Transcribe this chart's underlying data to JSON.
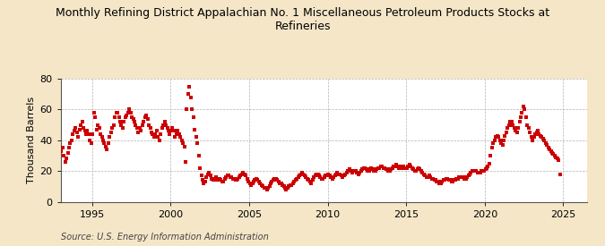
{
  "title": "Monthly Refining District Appalachian No. 1 Miscellaneous Petroleum Products Stocks at\nRefineries",
  "ylabel": "Thousand Barrels",
  "source": "Source: U.S. Energy Information Administration",
  "background_color": "#f5e6c8",
  "plot_bg_color": "#ffffff",
  "marker_color": "#cc0000",
  "marker_size": 5,
  "xlim_left": 1993.0,
  "xlim_right": 2026.5,
  "ylim_bottom": 0,
  "ylim_top": 80,
  "yticks": [
    0,
    20,
    40,
    60,
    80
  ],
  "xticks": [
    1995,
    2000,
    2005,
    2010,
    2015,
    2020,
    2025
  ],
  "data": {
    "1993-01": 33,
    "1993-02": 35,
    "1993-03": 30,
    "1993-04": 26,
    "1993-05": 28,
    "1993-06": 32,
    "1993-07": 35,
    "1993-08": 38,
    "1993-09": 40,
    "1993-10": 44,
    "1993-11": 46,
    "1993-12": 48,
    "1994-01": 45,
    "1994-02": 42,
    "1994-03": 47,
    "1994-04": 50,
    "1994-05": 52,
    "1994-06": 48,
    "1994-07": 46,
    "1994-08": 44,
    "1994-09": 46,
    "1994-10": 44,
    "1994-11": 40,
    "1994-12": 38,
    "1995-01": 44,
    "1995-02": 58,
    "1995-03": 55,
    "1995-04": 47,
    "1995-05": 50,
    "1995-06": 48,
    "1995-07": 44,
    "1995-08": 42,
    "1995-09": 40,
    "1995-10": 38,
    "1995-11": 36,
    "1995-12": 34,
    "1996-01": 38,
    "1996-02": 42,
    "1996-03": 45,
    "1996-04": 48,
    "1996-05": 50,
    "1996-06": 55,
    "1996-07": 58,
    "1996-08": 58,
    "1996-09": 55,
    "1996-10": 52,
    "1996-11": 50,
    "1996-12": 48,
    "1997-01": 52,
    "1997-02": 55,
    "1997-03": 56,
    "1997-04": 58,
    "1997-05": 60,
    "1997-06": 58,
    "1997-07": 55,
    "1997-08": 54,
    "1997-09": 52,
    "1997-10": 50,
    "1997-11": 48,
    "1997-12": 45,
    "1998-01": 48,
    "1998-02": 46,
    "1998-03": 50,
    "1998-04": 52,
    "1998-05": 55,
    "1998-06": 56,
    "1998-07": 54,
    "1998-08": 50,
    "1998-09": 48,
    "1998-10": 45,
    "1998-11": 44,
    "1998-12": 42,
    "1999-01": 44,
    "1999-02": 46,
    "1999-03": 42,
    "1999-04": 40,
    "1999-05": 44,
    "1999-06": 48,
    "1999-07": 50,
    "1999-08": 52,
    "1999-09": 50,
    "1999-10": 48,
    "1999-11": 46,
    "1999-12": 44,
    "2000-01": 46,
    "2000-02": 48,
    "2000-03": 46,
    "2000-04": 42,
    "2000-05": 44,
    "2000-06": 46,
    "2000-07": 44,
    "2000-08": 42,
    "2000-09": 40,
    "2000-10": 38,
    "2000-11": 36,
    "2000-12": 26,
    "2001-01": 60,
    "2001-02": 70,
    "2001-03": 75,
    "2001-04": 68,
    "2001-05": 60,
    "2001-06": 55,
    "2001-07": 47,
    "2001-08": 42,
    "2001-09": 38,
    "2001-10": 30,
    "2001-11": 22,
    "2001-12": 17,
    "2002-01": 14,
    "2002-02": 12,
    "2002-03": 13,
    "2002-04": 16,
    "2002-05": 18,
    "2002-06": 19,
    "2002-07": 17,
    "2002-08": 15,
    "2002-09": 14,
    "2002-10": 15,
    "2002-11": 16,
    "2002-12": 14,
    "2003-01": 14,
    "2003-02": 15,
    "2003-03": 14,
    "2003-04": 13,
    "2003-05": 13,
    "2003-06": 15,
    "2003-07": 16,
    "2003-08": 17,
    "2003-09": 17,
    "2003-10": 16,
    "2003-11": 16,
    "2003-12": 15,
    "2004-01": 15,
    "2004-02": 14,
    "2004-03": 14,
    "2004-04": 15,
    "2004-05": 16,
    "2004-06": 17,
    "2004-07": 18,
    "2004-08": 19,
    "2004-09": 18,
    "2004-10": 17,
    "2004-11": 15,
    "2004-12": 13,
    "2005-01": 12,
    "2005-02": 11,
    "2005-03": 12,
    "2005-04": 13,
    "2005-05": 14,
    "2005-06": 15,
    "2005-07": 14,
    "2005-08": 13,
    "2005-09": 12,
    "2005-10": 11,
    "2005-11": 10,
    "2005-12": 9,
    "2006-01": 9,
    "2006-02": 8,
    "2006-03": 9,
    "2006-04": 10,
    "2006-05": 12,
    "2006-06": 13,
    "2006-07": 14,
    "2006-08": 15,
    "2006-09": 15,
    "2006-10": 14,
    "2006-11": 13,
    "2006-12": 12,
    "2007-01": 12,
    "2007-02": 11,
    "2007-03": 10,
    "2007-04": 9,
    "2007-05": 8,
    "2007-06": 9,
    "2007-07": 10,
    "2007-08": 11,
    "2007-09": 11,
    "2007-10": 12,
    "2007-11": 13,
    "2007-12": 14,
    "2008-01": 15,
    "2008-02": 16,
    "2008-03": 17,
    "2008-04": 18,
    "2008-05": 19,
    "2008-06": 18,
    "2008-07": 17,
    "2008-08": 16,
    "2008-09": 15,
    "2008-10": 14,
    "2008-11": 13,
    "2008-12": 12,
    "2009-01": 14,
    "2009-02": 16,
    "2009-03": 17,
    "2009-04": 18,
    "2009-05": 18,
    "2009-06": 17,
    "2009-07": 16,
    "2009-08": 15,
    "2009-09": 15,
    "2009-10": 16,
    "2009-11": 17,
    "2009-12": 17,
    "2010-01": 18,
    "2010-02": 17,
    "2010-03": 16,
    "2010-04": 15,
    "2010-05": 16,
    "2010-06": 17,
    "2010-07": 18,
    "2010-08": 19,
    "2010-09": 18,
    "2010-10": 18,
    "2010-11": 17,
    "2010-12": 16,
    "2011-01": 17,
    "2011-02": 18,
    "2011-03": 19,
    "2011-04": 20,
    "2011-05": 21,
    "2011-06": 20,
    "2011-07": 19,
    "2011-08": 20,
    "2011-09": 20,
    "2011-10": 20,
    "2011-11": 19,
    "2011-12": 18,
    "2012-01": 19,
    "2012-02": 20,
    "2012-03": 21,
    "2012-04": 22,
    "2012-05": 22,
    "2012-06": 21,
    "2012-07": 20,
    "2012-08": 20,
    "2012-09": 21,
    "2012-10": 22,
    "2012-11": 21,
    "2012-12": 20,
    "2013-01": 20,
    "2013-02": 21,
    "2013-03": 22,
    "2013-04": 22,
    "2013-05": 23,
    "2013-06": 23,
    "2013-07": 22,
    "2013-08": 22,
    "2013-09": 21,
    "2013-10": 21,
    "2013-11": 20,
    "2013-12": 20,
    "2014-01": 21,
    "2014-02": 22,
    "2014-03": 23,
    "2014-04": 23,
    "2014-05": 24,
    "2014-06": 23,
    "2014-07": 22,
    "2014-08": 22,
    "2014-09": 23,
    "2014-10": 23,
    "2014-11": 22,
    "2014-12": 22,
    "2015-01": 22,
    "2015-02": 23,
    "2015-03": 24,
    "2015-04": 23,
    "2015-05": 22,
    "2015-06": 21,
    "2015-07": 20,
    "2015-08": 20,
    "2015-09": 21,
    "2015-10": 22,
    "2015-11": 21,
    "2015-12": 20,
    "2016-01": 19,
    "2016-02": 18,
    "2016-03": 17,
    "2016-04": 16,
    "2016-05": 16,
    "2016-06": 17,
    "2016-07": 16,
    "2016-08": 15,
    "2016-09": 15,
    "2016-10": 14,
    "2016-11": 14,
    "2016-12": 13,
    "2017-01": 13,
    "2017-02": 12,
    "2017-03": 12,
    "2017-04": 13,
    "2017-05": 14,
    "2017-06": 14,
    "2017-07": 15,
    "2017-08": 15,
    "2017-09": 14,
    "2017-10": 14,
    "2017-11": 13,
    "2017-12": 13,
    "2018-01": 14,
    "2018-02": 14,
    "2018-03": 15,
    "2018-04": 15,
    "2018-05": 16,
    "2018-06": 16,
    "2018-07": 16,
    "2018-08": 16,
    "2018-09": 15,
    "2018-10": 15,
    "2018-11": 16,
    "2018-12": 17,
    "2019-01": 18,
    "2019-02": 19,
    "2019-03": 20,
    "2019-04": 20,
    "2019-05": 20,
    "2019-06": 20,
    "2019-07": 19,
    "2019-08": 19,
    "2019-09": 19,
    "2019-10": 20,
    "2019-11": 20,
    "2019-12": 20,
    "2020-01": 21,
    "2020-02": 22,
    "2020-03": 23,
    "2020-04": 25,
    "2020-05": 30,
    "2020-06": 35,
    "2020-07": 38,
    "2020-08": 40,
    "2020-09": 42,
    "2020-10": 43,
    "2020-11": 42,
    "2020-12": 40,
    "2021-01": 38,
    "2021-02": 37,
    "2021-03": 40,
    "2021-04": 43,
    "2021-05": 45,
    "2021-06": 48,
    "2021-07": 50,
    "2021-08": 52,
    "2021-09": 52,
    "2021-10": 50,
    "2021-11": 48,
    "2021-12": 46,
    "2022-01": 45,
    "2022-02": 48,
    "2022-03": 52,
    "2022-04": 55,
    "2022-05": 58,
    "2022-06": 62,
    "2022-07": 60,
    "2022-08": 55,
    "2022-09": 50,
    "2022-10": 48,
    "2022-11": 45,
    "2022-12": 42,
    "2023-01": 40,
    "2023-02": 42,
    "2023-03": 44,
    "2023-04": 45,
    "2023-05": 46,
    "2023-06": 44,
    "2023-07": 43,
    "2023-08": 42,
    "2023-09": 41,
    "2023-10": 40,
    "2023-11": 38,
    "2023-12": 37,
    "2024-01": 35,
    "2024-02": 34,
    "2024-03": 33,
    "2024-04": 32,
    "2024-05": 31,
    "2024-06": 30,
    "2024-07": 29,
    "2024-08": 28,
    "2024-09": 27,
    "2024-10": 18
  }
}
